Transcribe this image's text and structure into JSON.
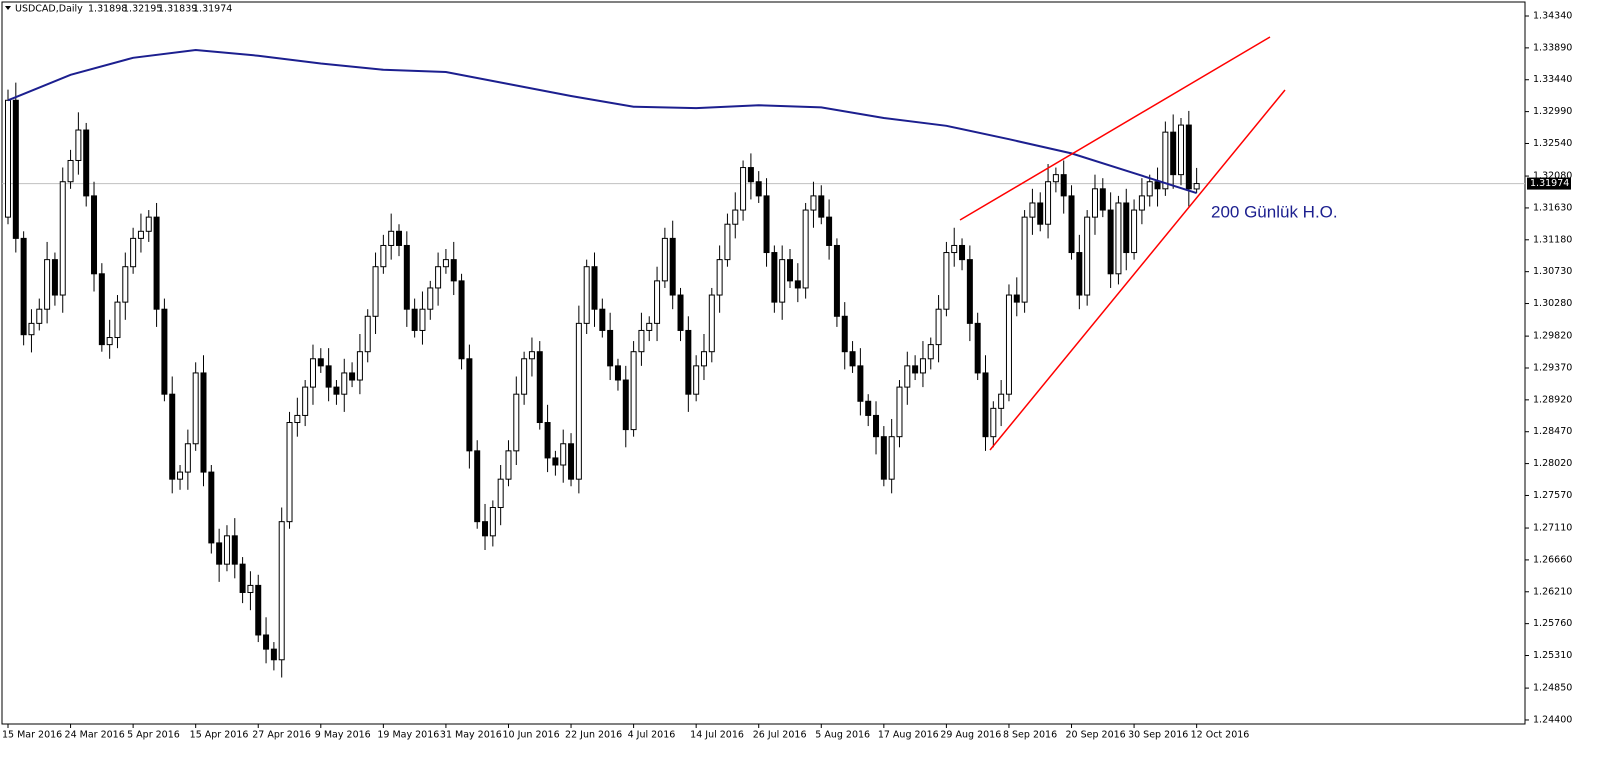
{
  "chart_data": {
    "type": "candlestick",
    "symbol": "USDCAD,Daily",
    "annotation": "200 Günlük H.O.",
    "categories": [
      "15 Mar 2016",
      null,
      null,
      null,
      null,
      null,
      null,
      null,
      "24 Mar 2016",
      null,
      null,
      null,
      null,
      null,
      null,
      null,
      "5 Apr 2016",
      null,
      null,
      null,
      null,
      null,
      null,
      null,
      "15 Apr 2016",
      null,
      null,
      null,
      null,
      null,
      null,
      null,
      "27 Apr 2016",
      null,
      null,
      null,
      null,
      null,
      null,
      null,
      "9 May 2016",
      null,
      null,
      null,
      null,
      null,
      null,
      null,
      "19 May 2016",
      null,
      null,
      null,
      null,
      null,
      null,
      null,
      "31 May 2016",
      null,
      null,
      null,
      null,
      null,
      null,
      null,
      "10 Jun 2016",
      null,
      null,
      null,
      null,
      null,
      null,
      null,
      "22 Jun 2016",
      null,
      null,
      null,
      null,
      null,
      null,
      null,
      "4 Jul 2016",
      null,
      null,
      null,
      null,
      null,
      null,
      null,
      "14 Jul 2016",
      null,
      null,
      null,
      null,
      null,
      null,
      null,
      "26 Jul 2016",
      null,
      null,
      null,
      null,
      null,
      null,
      null,
      "5 Aug 2016",
      null,
      null,
      null,
      null,
      null,
      null,
      null,
      "17 Aug 2016",
      null,
      null,
      null,
      null,
      null,
      null,
      null,
      "29 Aug 2016",
      null,
      null,
      null,
      null,
      null,
      null,
      null,
      "8 Sep 2016",
      null,
      null,
      null,
      null,
      null,
      null,
      null,
      "20 Sep 2016",
      null,
      null,
      null,
      null,
      null,
      null,
      null,
      "30 Sep 2016",
      null,
      null,
      null,
      null,
      null,
      null,
      null,
      "12 Oct 2016"
    ],
    "open": [
      1.315,
      1.3315,
      1.312,
      1.2984,
      1.3,
      1.302,
      1.309,
      1.304,
      1.32,
      1.323,
      1.3273,
      1.318,
      1.307,
      1.297,
      1.298,
      1.303,
      1.308,
      1.312,
      1.313,
      1.315,
      1.302,
      1.29,
      1.278,
      1.279,
      1.283,
      1.293,
      1.279,
      1.269,
      1.266,
      1.27,
      1.266,
      1.262,
      1.263,
      1.256,
      1.254,
      1.2525,
      1.272,
      1.286,
      1.287,
      1.291,
      1.295,
      1.294,
      1.291,
      1.29,
      1.293,
      1.292,
      1.296,
      1.301,
      1.308,
      1.311,
      1.313,
      1.311,
      1.302,
      1.299,
      1.302,
      1.305,
      1.308,
      1.309,
      1.306,
      1.295,
      1.282,
      1.272,
      1.27,
      1.274,
      1.278,
      1.282,
      1.29,
      1.295,
      1.296,
      1.286,
      1.281,
      1.28,
      1.283,
      1.278,
      1.3,
      1.308,
      1.302,
      1.299,
      1.294,
      1.292,
      1.285,
      1.296,
      1.299,
      1.3,
      1.306,
      1.312,
      1.304,
      1.299,
      1.29,
      1.294,
      1.296,
      1.304,
      1.309,
      1.314,
      1.316,
      1.322,
      1.32,
      1.318,
      1.31,
      1.303,
      1.309,
      1.306,
      1.305,
      1.316,
      1.318,
      1.315,
      1.311,
      1.301,
      1.296,
      1.294,
      1.289,
      1.287,
      1.284,
      1.278,
      1.284,
      1.291,
      1.294,
      1.293,
      1.295,
      1.297,
      1.302,
      1.31,
      1.311,
      1.309,
      1.3,
      1.293,
      1.284,
      1.288,
      1.29,
      1.304,
      1.303,
      1.315,
      1.317,
      1.314,
      1.32,
      1.321,
      1.318,
      1.31,
      1.304,
      1.315,
      1.319,
      1.316,
      1.307,
      1.317,
      1.31,
      1.316,
      1.318,
      1.32,
      1.319,
      1.327,
      1.321,
      1.328,
      1.31898
    ],
    "high": [
      1.333,
      1.334,
      1.313,
      1.302,
      1.3035,
      1.3115,
      1.31,
      1.322,
      1.3245,
      1.3298,
      1.3283,
      1.32,
      1.3085,
      1.3005,
      1.304,
      1.31,
      1.3135,
      1.3155,
      1.316,
      1.317,
      1.3035,
      1.2925,
      1.28,
      1.285,
      1.2945,
      1.2955,
      1.28,
      1.271,
      1.2715,
      1.2725,
      1.267,
      1.265,
      1.2645,
      1.2585,
      1.255,
      1.274,
      1.2875,
      1.2895,
      1.292,
      1.297,
      1.2965,
      1.2965,
      1.292,
      1.295,
      1.2945,
      1.2985,
      1.302,
      1.31,
      1.3125,
      1.3155,
      1.314,
      1.313,
      1.3035,
      1.3045,
      1.306,
      1.31,
      1.3105,
      1.3115,
      1.307,
      1.297,
      1.2835,
      1.2745,
      1.275,
      1.28,
      1.2835,
      1.2925,
      1.296,
      1.298,
      1.2975,
      1.2885,
      1.282,
      1.285,
      1.2845,
      1.3025,
      1.309,
      1.31,
      1.3035,
      1.3015,
      1.295,
      1.294,
      1.2975,
      1.3015,
      1.301,
      1.308,
      1.3135,
      1.3145,
      1.305,
      1.301,
      1.2955,
      1.2985,
      1.305,
      1.311,
      1.3155,
      1.3185,
      1.323,
      1.324,
      1.3215,
      1.3205,
      1.311,
      1.311,
      1.3105,
      1.3085,
      1.317,
      1.32,
      1.3195,
      1.3175,
      1.312,
      1.303,
      1.2975,
      1.2965,
      1.29,
      1.289,
      1.2855,
      1.2865,
      1.292,
      1.296,
      1.2955,
      1.2975,
      1.298,
      1.304,
      1.3115,
      1.3135,
      1.312,
      1.311,
      1.3015,
      1.2955,
      1.289,
      1.292,
      1.3055,
      1.3065,
      1.316,
      1.319,
      1.3185,
      1.3225,
      1.322,
      1.323,
      1.3195,
      1.3125,
      1.316,
      1.321,
      1.3205,
      1.3185,
      1.318,
      1.319,
      1.3175,
      1.3205,
      1.321,
      1.322,
      1.3285,
      1.3295,
      1.329,
      1.33,
      1.32195
    ],
    "low": [
      1.314,
      1.31,
      1.2969,
      1.2959,
      1.299,
      1.3,
      1.3025,
      1.3015,
      1.319,
      1.321,
      1.3165,
      1.3045,
      1.296,
      1.295,
      1.2965,
      1.3005,
      1.307,
      1.31,
      1.3115,
      1.2995,
      1.289,
      1.276,
      1.2765,
      1.2765,
      1.282,
      1.277,
      1.2675,
      1.2635,
      1.265,
      1.264,
      1.2605,
      1.2595,
      1.255,
      1.252,
      1.251,
      1.25,
      1.271,
      1.284,
      1.2855,
      1.2885,
      1.293,
      1.289,
      1.2885,
      1.2875,
      1.291,
      1.29,
      1.2945,
      1.2985,
      1.307,
      1.309,
      1.3095,
      1.2995,
      1.298,
      1.297,
      1.3005,
      1.3025,
      1.307,
      1.304,
      1.2935,
      1.2795,
      1.271,
      1.268,
      1.2685,
      1.2715,
      1.277,
      1.28,
      1.2885,
      1.2925,
      1.285,
      1.279,
      1.2785,
      1.2775,
      1.277,
      1.276,
      1.2985,
      1.2995,
      1.298,
      1.292,
      1.2905,
      1.2825,
      1.284,
      1.294,
      1.2975,
      1.2975,
      1.305,
      1.302,
      1.2975,
      1.2875,
      1.289,
      1.292,
      1.2945,
      1.3015,
      1.308,
      1.312,
      1.3145,
      1.3175,
      1.317,
      1.308,
      1.3015,
      1.3005,
      1.305,
      1.303,
      1.3035,
      1.3135,
      1.314,
      1.309,
      1.2995,
      1.2935,
      1.293,
      1.287,
      1.2855,
      1.2815,
      1.277,
      1.276,
      1.2825,
      1.2885,
      1.292,
      1.291,
      1.2935,
      1.2945,
      1.301,
      1.308,
      1.3075,
      1.2975,
      1.292,
      1.282,
      1.2825,
      1.2855,
      1.289,
      1.301,
      1.3015,
      1.3125,
      1.313,
      1.312,
      1.3185,
      1.3155,
      1.309,
      1.302,
      1.3025,
      1.3125,
      1.315,
      1.305,
      1.3055,
      1.3075,
      1.309,
      1.314,
      1.3165,
      1.3165,
      1.318,
      1.319,
      1.3195,
      1.3165,
      1.31839
    ],
    "close": [
      1.3315,
      1.312,
      1.2984,
      1.3,
      1.302,
      1.309,
      1.304,
      1.32,
      1.323,
      1.3273,
      1.318,
      1.307,
      1.297,
      1.298,
      1.303,
      1.308,
      1.312,
      1.313,
      1.315,
      1.302,
      1.29,
      1.278,
      1.279,
      1.283,
      1.293,
      1.279,
      1.269,
      1.266,
      1.27,
      1.266,
      1.262,
      1.263,
      1.256,
      1.254,
      1.2525,
      1.272,
      1.286,
      1.287,
      1.291,
      1.295,
      1.294,
      1.291,
      1.29,
      1.293,
      1.292,
      1.296,
      1.301,
      1.308,
      1.311,
      1.313,
      1.311,
      1.302,
      1.299,
      1.302,
      1.305,
      1.308,
      1.309,
      1.306,
      1.295,
      1.282,
      1.272,
      1.27,
      1.274,
      1.278,
      1.282,
      1.29,
      1.295,
      1.296,
      1.286,
      1.281,
      1.28,
      1.283,
      1.278,
      1.3,
      1.308,
      1.302,
      1.299,
      1.294,
      1.292,
      1.285,
      1.296,
      1.299,
      1.3,
      1.306,
      1.312,
      1.304,
      1.299,
      1.29,
      1.294,
      1.296,
      1.304,
      1.309,
      1.314,
      1.316,
      1.322,
      1.32,
      1.318,
      1.31,
      1.303,
      1.309,
      1.306,
      1.305,
      1.316,
      1.318,
      1.315,
      1.311,
      1.301,
      1.296,
      1.294,
      1.289,
      1.287,
      1.284,
      1.278,
      1.284,
      1.291,
      1.294,
      1.293,
      1.295,
      1.297,
      1.302,
      1.31,
      1.311,
      1.309,
      1.3,
      1.293,
      1.284,
      1.288,
      1.29,
      1.304,
      1.303,
      1.315,
      1.317,
      1.314,
      1.32,
      1.321,
      1.318,
      1.31,
      1.304,
      1.315,
      1.319,
      1.316,
      1.307,
      1.317,
      1.31,
      1.316,
      1.318,
      1.32,
      1.319,
      1.327,
      1.321,
      1.328,
      1.319,
      1.31974
    ],
    "ma": {
      "color": "#1c1f8f",
      "x": [
        "15 Mar 2016",
        "24 Mar 2016",
        "5 Apr 2016",
        "15 Apr 2016",
        "27 Apr 2016",
        "9 May 2016",
        "19 May 2016",
        "31 May 2016",
        "10 Jun 2016",
        "22 Jun 2016",
        "4 Jul 2016",
        "14 Jul 2016",
        "26 Jul 2016",
        "5 Aug 2016",
        "17 Aug 2016",
        "29 Aug 2016",
        "8 Sep 2016",
        "20 Sep 2016",
        "30 Sep 2016",
        "12 Oct 2016"
      ],
      "values": [
        1.3315,
        1.3351,
        1.3375,
        1.3386,
        1.3378,
        1.3367,
        1.3358,
        1.3355,
        1.3338,
        1.3321,
        1.3306,
        1.3304,
        1.3308,
        1.3305,
        1.329,
        1.3279,
        1.326,
        1.324,
        1.3212,
        1.3184
      ]
    },
    "ylim": [
      1.24343,
      1.34566
    ],
    "yticks": [
      {
        "value": 1.3434,
        "label": "1.34340"
      },
      {
        "value": 1.3389,
        "label": "1.33890"
      },
      {
        "value": 1.3344,
        "label": "1.33440"
      },
      {
        "value": 1.3299,
        "label": "1.32990"
      },
      {
        "value": 1.3254,
        "label": "1.32540"
      },
      {
        "value": 1.3208,
        "label": "1.32080"
      },
      {
        "value": 1.3163,
        "label": "1.31630"
      },
      {
        "value": 1.3118,
        "label": "1.31180"
      },
      {
        "value": 1.3073,
        "label": "1.30730"
      },
      {
        "value": 1.3028,
        "label": "1.30280"
      },
      {
        "value": 1.2982,
        "label": "1.29820"
      },
      {
        "value": 1.2937,
        "label": "1.29370"
      },
      {
        "value": 1.2892,
        "label": "1.28920"
      },
      {
        "value": 1.2847,
        "label": "1.28470"
      },
      {
        "value": 1.2802,
        "label": "1.28020"
      },
      {
        "value": 1.2757,
        "label": "1.27570"
      },
      {
        "value": 1.2711,
        "label": "1.27110"
      },
      {
        "value": 1.2666,
        "label": "1.26660"
      },
      {
        "value": 1.2621,
        "label": "1.26210"
      },
      {
        "value": 1.2576,
        "label": "1.25760"
      },
      {
        "value": 1.2531,
        "label": "1.25310"
      },
      {
        "value": 1.2485,
        "label": "1.24850"
      },
      {
        "value": 1.244,
        "label": "1.24400"
      }
    ],
    "up_color": "#ffffff",
    "down_color": "#000000"
  }
}
